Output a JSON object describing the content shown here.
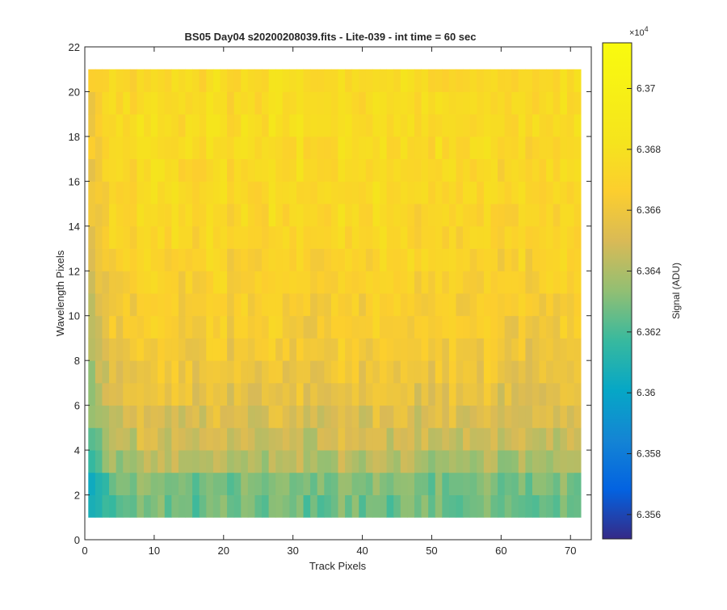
{
  "chart_data": {
    "type": "heatmap",
    "title": "BS05 Day04  s20200208039.fits - Lite-039 - int time = 60 sec",
    "xlabel": "Track Pixels",
    "ylabel": "Wavelength Pixels",
    "xlim": [
      0,
      73
    ],
    "ylim": [
      0,
      22
    ],
    "x_ticks": [
      "0",
      "10",
      "20",
      "30",
      "40",
      "50",
      "60",
      "70"
    ],
    "y_ticks": [
      "0",
      "2",
      "4",
      "6",
      "8",
      "10",
      "12",
      "14",
      "16",
      "18",
      "20",
      "22"
    ],
    "grid": false,
    "colormap": "parula",
    "columns": 71,
    "rows": 20,
    "value_model": {
      "note_kind": "per-row mean signal (ADU) plus column edge ramp",
      "row_means": [
        63627,
        63630,
        63640,
        63647,
        63652,
        63656,
        63659,
        63661,
        63664,
        63666,
        63668,
        63669,
        63671,
        63672,
        63673,
        63674,
        63675,
        63676,
        63675,
        63674
      ],
      "row_centers": [
        1.5,
        2.5,
        3.5,
        4.5,
        5.5,
        6.5,
        7.5,
        8.5,
        9.5,
        10.5,
        11.5,
        12.5,
        13.5,
        14.5,
        15.5,
        16.5,
        17.5,
        18.5,
        19.5,
        20.5
      ]
    },
    "colorbar": {
      "label": "Signal (ADU)",
      "exponent_label": "×10",
      "exponent": "4",
      "clim": [
        63552,
        63715
      ],
      "ticks": [
        "6.356",
        "6.358",
        "6.36",
        "6.362",
        "6.364",
        "6.366",
        "6.368",
        "6.37"
      ],
      "tick_values": [
        63560,
        63580,
        63600,
        63620,
        63640,
        63660,
        63680,
        63700
      ]
    }
  },
  "colors": {
    "axis": "#262626",
    "background": "#ffffff"
  }
}
